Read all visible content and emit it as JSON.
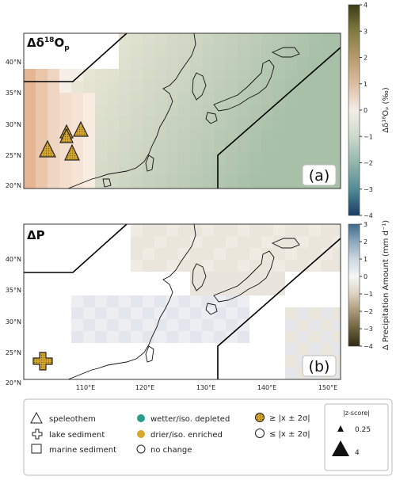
{
  "panels": [
    {
      "id": "a",
      "title": "Δδ",
      "title_sup": "18",
      "title_rest": "O",
      "title_sub": "p",
      "panel_letter": "(a)",
      "colorbar_label": "Δδ¹⁸Oₚ (‰)",
      "colorbar_ticks": [
        "4",
        "3",
        "2",
        "1",
        "0",
        "−1",
        "−2",
        "−3",
        "−4"
      ],
      "colorbar_colors": [
        "#3a3a16",
        "#7e7a3e",
        "#b79a6b",
        "#ddbfa3",
        "#f4ede6",
        "#cfdbcc",
        "#93b6ad",
        "#4f8a94",
        "#1a3a66"
      ]
    },
    {
      "id": "b",
      "title": "ΔP",
      "panel_letter": "(b)",
      "colorbar_label": "Δ Precipitation Amount (mm d⁻¹)",
      "colorbar_ticks": [
        "3",
        "2",
        "1",
        "0",
        "−1",
        "−2",
        "−3",
        "−4"
      ],
      "colorbar_colors": [
        "#3f6a8a",
        "#8aa7bd",
        "#c9d5df",
        "#f6f6f6",
        "#ddd2c4",
        "#a9997a",
        "#6f6440",
        "#2e2a12"
      ]
    }
  ],
  "lat_ticks": [
    "40°N",
    "35°N",
    "30°N",
    "25°N",
    "20°N"
  ],
  "lon_ticks": [
    "110°E",
    "120°E",
    "130°E",
    "140°E",
    "150°E"
  ],
  "legend": {
    "speleothem": "speleothem",
    "lake": "lake sediment",
    "marine": "marine sediment",
    "wetter": "wetter/iso. depleted",
    "drier": "drier/iso. enriched",
    "nochange": "no change",
    "sig_gt": "≥ |x ± 2σ|",
    "sig_le": "≤ |x ± 2σ|",
    "zscore_title": "|z-score|",
    "z_small": "0.25",
    "z_large": "4",
    "wetter_color": "#2a9d8f",
    "drier_color": "#d8a72b"
  }
}
